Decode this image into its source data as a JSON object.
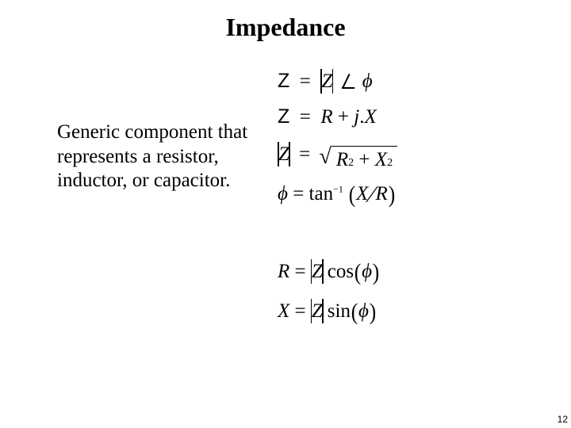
{
  "title": "Impedance",
  "description": "Generic component that represents a resistor, inductor, or capacitor.",
  "page_number": "12"
}
